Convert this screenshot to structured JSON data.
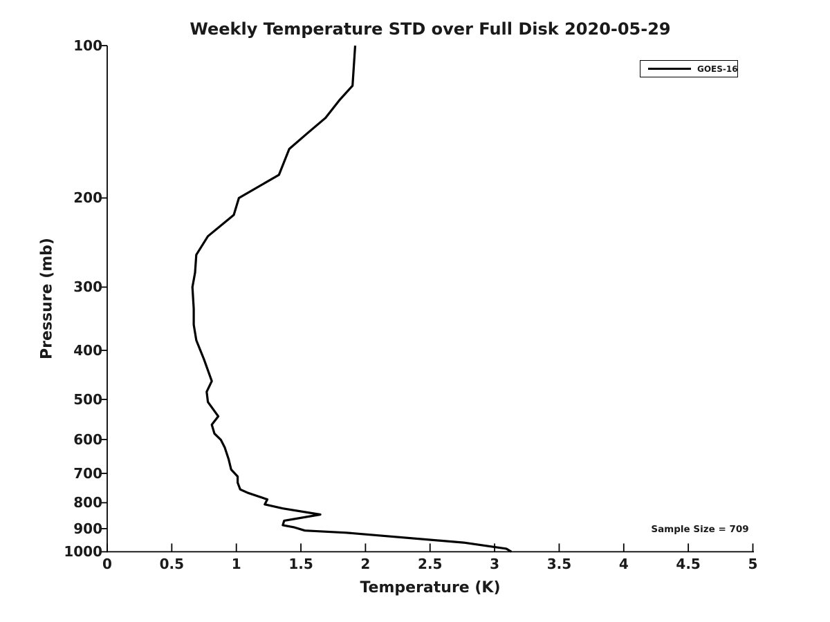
{
  "figure": {
    "background_color": "#ffffff",
    "foreground_color": "#000000"
  },
  "chart_data": {
    "type": "line",
    "title": "Weekly Temperature STD over Full Disk 2020-05-29",
    "xlabel": "Temperature (K)",
    "ylabel": "Pressure (mb)",
    "xlim": [
      0,
      5
    ],
    "ylim": [
      100,
      1000
    ],
    "x_scale": "linear",
    "y_scale": "log",
    "y_inverted": true,
    "grid": false,
    "x_ticks": [
      0,
      0.5,
      1,
      1.5,
      2,
      2.5,
      3,
      3.5,
      4,
      4.5,
      5
    ],
    "x_tick_labels": [
      "0",
      "0.5",
      "1",
      "1.5",
      "2",
      "2.5",
      "3",
      "3.5",
      "4",
      "4.5",
      "5"
    ],
    "y_ticks": [
      100,
      200,
      300,
      400,
      500,
      600,
      700,
      800,
      900,
      1000
    ],
    "y_tick_labels": [
      "100",
      "200",
      "300",
      "400",
      "500",
      "600",
      "700",
      "800",
      "900",
      "1000"
    ],
    "legend": {
      "position": "top-right",
      "entries": [
        {
          "label": "GOES-16",
          "color": "#000000",
          "line_width": 3
        }
      ]
    },
    "annotation": "Sample Size = 709",
    "series": [
      {
        "name": "GOES-16",
        "color": "#000000",
        "points_format": [
          "temperature_K",
          "pressure_mb"
        ],
        "points": [
          [
            1.92,
            100
          ],
          [
            1.9,
            120
          ],
          [
            1.8,
            128
          ],
          [
            1.69,
            139
          ],
          [
            1.55,
            149
          ],
          [
            1.41,
            160
          ],
          [
            1.33,
            180
          ],
          [
            1.02,
            200
          ],
          [
            0.98,
            216
          ],
          [
            0.78,
            238
          ],
          [
            0.69,
            259
          ],
          [
            0.68,
            281
          ],
          [
            0.66,
            300
          ],
          [
            0.67,
            331
          ],
          [
            0.67,
            356
          ],
          [
            0.69,
            382
          ],
          [
            0.75,
            417
          ],
          [
            0.81,
            460
          ],
          [
            0.77,
            483
          ],
          [
            0.78,
            506
          ],
          [
            0.86,
            540
          ],
          [
            0.81,
            561
          ],
          [
            0.83,
            584
          ],
          [
            0.88,
            601
          ],
          [
            0.91,
            622
          ],
          [
            0.94,
            656
          ],
          [
            0.96,
            688
          ],
          [
            1.01,
            710
          ],
          [
            1.01,
            730
          ],
          [
            1.03,
            753
          ],
          [
            1.09,
            765
          ],
          [
            1.24,
            788
          ],
          [
            1.22,
            806
          ],
          [
            1.36,
            821
          ],
          [
            1.65,
            844
          ],
          [
            1.37,
            868
          ],
          [
            1.36,
            886
          ],
          [
            1.45,
            895
          ],
          [
            1.53,
            908
          ],
          [
            1.85,
            917
          ],
          [
            2.76,
            959
          ],
          [
            3.09,
            986
          ],
          [
            3.13,
            1000
          ]
        ]
      }
    ]
  }
}
